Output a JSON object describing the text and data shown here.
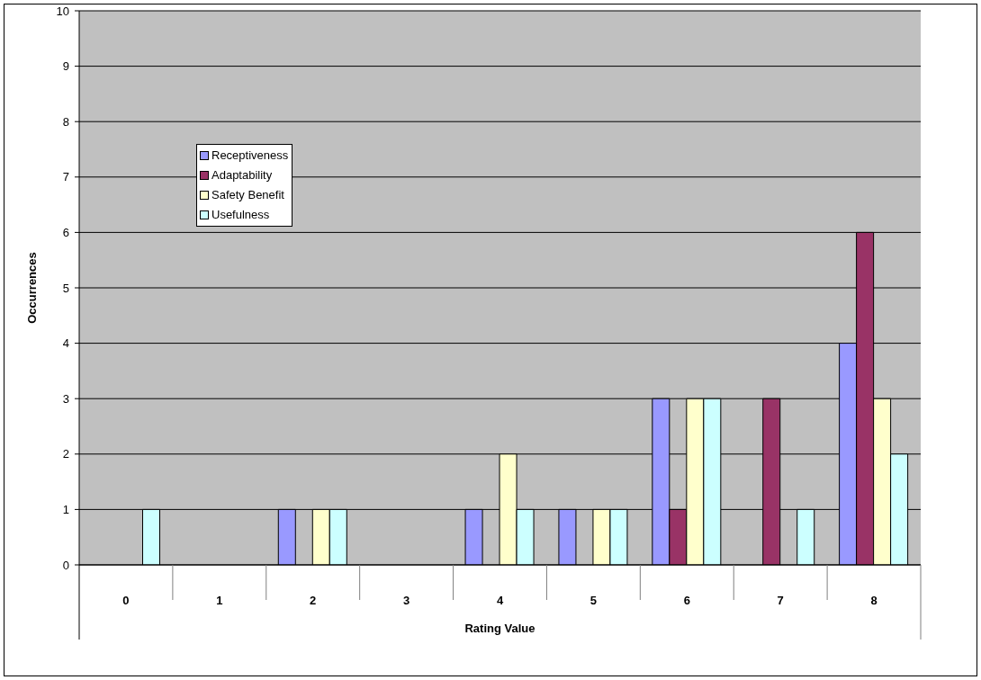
{
  "chart_data": {
    "type": "bar",
    "xlabel": "Rating Value",
    "ylabel": "Occurrences",
    "categories": [
      "0",
      "1",
      "2",
      "3",
      "4",
      "5",
      "6",
      "7",
      "8"
    ],
    "series": [
      {
        "name": "Receptiveness",
        "color": "#9999ff",
        "values": [
          null,
          null,
          1,
          null,
          1,
          1,
          3,
          null,
          4
        ]
      },
      {
        "name": "Adaptability",
        "color": "#993366",
        "values": [
          null,
          null,
          null,
          null,
          null,
          null,
          1,
          3,
          6
        ]
      },
      {
        "name": "Safety Benefit",
        "color": "#ffffcc",
        "values": [
          null,
          null,
          1,
          null,
          2,
          1,
          3,
          null,
          3
        ]
      },
      {
        "name": "Usefulness",
        "color": "#ccffff",
        "values": [
          1,
          null,
          1,
          null,
          1,
          1,
          3,
          1,
          2
        ]
      }
    ],
    "ylim": [
      0,
      10
    ],
    "yticks": [
      0,
      1,
      2,
      3,
      4,
      5,
      6,
      7,
      8,
      9,
      10
    ],
    "grid": "y",
    "legend": "top left"
  }
}
